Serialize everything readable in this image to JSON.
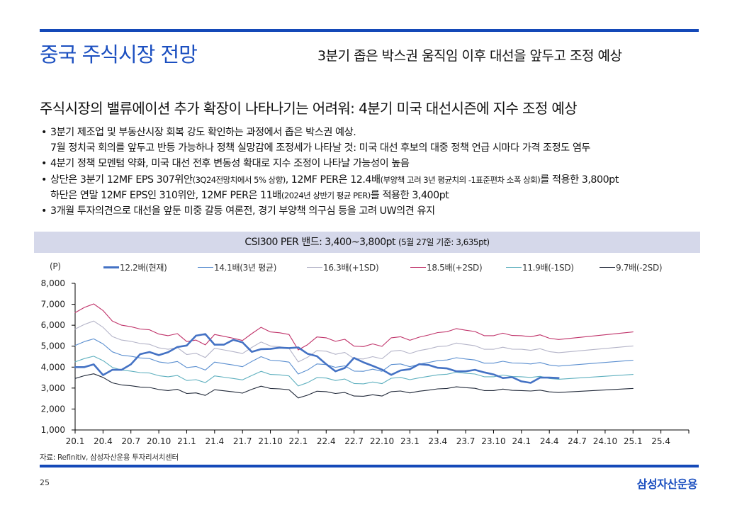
{
  "header": {
    "title": "중국 주식시장 전망",
    "subtitle": "3분기 좁은 박스권 움직임 이후 대선을 앞두고 조정 예상"
  },
  "headline": "주식시장의 밸류에이션 추가 확장이 나타나기는 어려워: 4분기 미국 대선시즌에 지수 조정 예상",
  "bullets": [
    {
      "marker": "•",
      "line1": "3분기 제조업 및 부동산시장 회복 강도 확인하는 과정에서 좁은 박스권 예상.",
      "line2": "7월 정치국 회의를 앞두고 반등 가능하나 정책 실망감에 조정세가 나타날 것: 미국 대선 후보의 대중 정책 언급 시마다 가격 조정도 염두"
    },
    {
      "marker": "•",
      "line1": "4분기 정책 모멘텀 약화, 미국 대선 전후 변동성 확대로 지수 조정이 나타날 가능성이 높음"
    },
    {
      "marker": "•",
      "line1_a": "상단은 3분기 12MF EPS 307위안",
      "line1_b": "(3Q24전망치에서 5% 상향)",
      "line1_c": ", 12MF PER은 12.4배",
      "line1_d": "(부양책 고려 3년 평균치의 -1표준편차 소폭 상회)",
      "line1_e": "를 적용한 3,800pt",
      "line2_a": "하단은 연말 12MF EPS인 310위안, 12MF PER은 11배",
      "line2_b": "(2024년 상반기 평균 PER)",
      "line2_c": "를 적용한 3,400pt"
    },
    {
      "marker": "•",
      "line1": "3개월 투자의견으로 대선을 앞둔 미중 갈등 여론전, 경기 부양책 의구심 등을 고려 UW의견 유지"
    }
  ],
  "band_bar": {
    "main": "CSI300 PER 밴드: 3,400~3,800pt",
    "note": "(5월 27일 기준: 3,635pt)"
  },
  "source": "자료: Refinitiv, 삼성자산운용 투자리서치센터",
  "page_number": "25",
  "brand": "삼성자산운용",
  "chart_data": {
    "type": "line",
    "title": "CSI300 PER 밴드",
    "ylabel": "(P)",
    "xlabel": "",
    "ylim": [
      1000,
      8000
    ],
    "yticks": [
      1000,
      2000,
      3000,
      4000,
      5000,
      6000,
      7000,
      8000
    ],
    "ytick_labels": [
      "1,000",
      "2,000",
      "3,000",
      "4,000",
      "5,000",
      "6,000",
      "7,000",
      "8,000"
    ],
    "x_start": "20.1",
    "x_unit": "month",
    "xlim_months": [
      0,
      66
    ],
    "xticks": [
      "20.1",
      "20.4",
      "20.7",
      "20.10",
      "21.1",
      "21.4",
      "21.7",
      "21.10",
      "22.1",
      "22.4",
      "22.7",
      "22.10",
      "23.1",
      "23.4",
      "23.7",
      "23.10",
      "24.1",
      "24.4",
      "24.7",
      "24.10",
      "25.1",
      "25.4"
    ],
    "grid": false,
    "legend_position": "top",
    "series": [
      {
        "name": "12.2배(현재)",
        "color": "#4472c4",
        "thick": true,
        "months": [
          0,
          1,
          2,
          3,
          4,
          5,
          6,
          7,
          8,
          9,
          10,
          11,
          12,
          13,
          14,
          15,
          16,
          17,
          18,
          19,
          20,
          21,
          22,
          23,
          24,
          25,
          26,
          27,
          28,
          29,
          30,
          31,
          32,
          33,
          34,
          35,
          36,
          37,
          38,
          39,
          40,
          41,
          42,
          43,
          44,
          45,
          46,
          47,
          48,
          49,
          50,
          51,
          52
        ],
        "values": [
          4000,
          4000,
          4130,
          3620,
          3870,
          3870,
          4130,
          4620,
          4720,
          4570,
          4710,
          4960,
          5030,
          5500,
          5580,
          5070,
          5070,
          5300,
          5180,
          4730,
          4860,
          4870,
          4930,
          4910,
          4940,
          4640,
          4520,
          4140,
          3800,
          3960,
          4440,
          4230,
          4060,
          3880,
          3630,
          3840,
          3900,
          4140,
          4100,
          3970,
          3940,
          3800,
          3800,
          3870,
          3750,
          3650,
          3480,
          3520,
          3320,
          3250,
          3500,
          3500,
          3480
        ]
      },
      {
        "name": "14.1배(3년 평균)",
        "color": "#5b8fd0",
        "months": [
          0,
          1,
          2,
          3,
          4,
          5,
          6,
          7,
          8,
          9,
          10,
          11,
          12,
          13,
          14,
          15,
          16,
          17,
          18,
          19,
          20,
          21,
          22,
          23,
          24,
          25,
          26,
          27,
          28,
          29,
          30,
          31,
          32,
          33,
          34,
          35,
          36,
          37,
          38,
          39,
          40,
          41,
          42,
          43,
          44,
          45,
          46,
          47,
          48,
          49,
          50,
          51,
          52,
          60
        ],
        "values": [
          5030,
          5220,
          5350,
          5110,
          4730,
          4570,
          4520,
          4440,
          4410,
          4250,
          4190,
          4270,
          3980,
          4030,
          3860,
          4240,
          4170,
          4100,
          4020,
          4270,
          4500,
          4330,
          4300,
          4240,
          3670,
          3860,
          4150,
          4120,
          3990,
          4060,
          3810,
          3800,
          3900,
          3800,
          4120,
          4150,
          4020,
          4140,
          4220,
          4310,
          4340,
          4450,
          4390,
          4340,
          4190,
          4190,
          4280,
          4200,
          4190,
          4150,
          4220,
          4100,
          4050,
          4330
        ]
      },
      {
        "name": "16.3배(+1SD)",
        "color": "#b4b4c8",
        "months": [
          0,
          1,
          2,
          3,
          4,
          5,
          6,
          7,
          8,
          9,
          10,
          11,
          12,
          13,
          14,
          15,
          16,
          17,
          18,
          19,
          20,
          21,
          22,
          23,
          24,
          25,
          26,
          27,
          28,
          29,
          30,
          31,
          32,
          33,
          34,
          35,
          36,
          37,
          38,
          39,
          40,
          41,
          42,
          43,
          44,
          45,
          46,
          47,
          48,
          49,
          50,
          51,
          52,
          60
        ],
        "values": [
          5820,
          6040,
          6200,
          5900,
          5460,
          5290,
          5230,
          5130,
          5090,
          4920,
          4850,
          4930,
          4600,
          4660,
          4460,
          4900,
          4820,
          4740,
          4650,
          4940,
          5200,
          5010,
          4970,
          4900,
          4250,
          4470,
          4790,
          4760,
          4610,
          4700,
          4410,
          4390,
          4500,
          4400,
          4760,
          4800,
          4650,
          4790,
          4870,
          4980,
          5010,
          5150,
          5080,
          5020,
          4850,
          4850,
          4950,
          4860,
          4850,
          4800,
          4880,
          4740,
          4690,
          5010
        ]
      },
      {
        "name": "18.5배(+2SD)",
        "color": "#c0336a",
        "months": [
          0,
          1,
          2,
          3,
          4,
          5,
          6,
          7,
          8,
          9,
          10,
          11,
          12,
          13,
          14,
          15,
          16,
          17,
          18,
          19,
          20,
          21,
          22,
          23,
          24,
          25,
          26,
          27,
          28,
          29,
          30,
          31,
          32,
          33,
          34,
          35,
          36,
          37,
          38,
          39,
          40,
          41,
          42,
          43,
          44,
          45,
          46,
          47,
          48,
          49,
          50,
          51,
          52,
          60
        ],
        "values": [
          6600,
          6850,
          7020,
          6700,
          6200,
          6000,
          5930,
          5820,
          5780,
          5580,
          5500,
          5600,
          5220,
          5290,
          5060,
          5560,
          5470,
          5380,
          5270,
          5600,
          5900,
          5680,
          5640,
          5560,
          4820,
          5070,
          5440,
          5400,
          5230,
          5330,
          5000,
          4980,
          5110,
          4990,
          5400,
          5450,
          5280,
          5430,
          5530,
          5650,
          5690,
          5840,
          5760,
          5700,
          5500,
          5500,
          5620,
          5510,
          5500,
          5450,
          5540,
          5380,
          5320,
          5680
        ]
      },
      {
        "name": "11.9배(-1SD)",
        "color": "#5fb0bf",
        "months": [
          0,
          1,
          2,
          3,
          4,
          5,
          6,
          7,
          8,
          9,
          10,
          11,
          12,
          13,
          14,
          15,
          16,
          17,
          18,
          19,
          20,
          21,
          22,
          23,
          24,
          25,
          26,
          27,
          28,
          29,
          30,
          31,
          32,
          33,
          34,
          35,
          36,
          37,
          38,
          39,
          40,
          41,
          42,
          43,
          44,
          45,
          46,
          47,
          48,
          49,
          50,
          51,
          52,
          60
        ],
        "values": [
          4250,
          4410,
          4520,
          4310,
          3990,
          3860,
          3810,
          3740,
          3720,
          3590,
          3540,
          3600,
          3360,
          3400,
          3260,
          3580,
          3520,
          3460,
          3390,
          3600,
          3800,
          3650,
          3630,
          3580,
          3100,
          3260,
          3500,
          3480,
          3360,
          3430,
          3220,
          3200,
          3290,
          3210,
          3470,
          3510,
          3400,
          3490,
          3560,
          3630,
          3660,
          3760,
          3710,
          3670,
          3540,
          3540,
          3620,
          3550,
          3540,
          3510,
          3560,
          3460,
          3420,
          3650
        ]
      },
      {
        "name": "9.7배(-2SD)",
        "color": "#222a3a",
        "months": [
          0,
          1,
          2,
          3,
          4,
          5,
          6,
          7,
          8,
          9,
          10,
          11,
          12,
          13,
          14,
          15,
          16,
          17,
          18,
          19,
          20,
          21,
          22,
          23,
          24,
          25,
          26,
          27,
          28,
          29,
          30,
          31,
          32,
          33,
          34,
          35,
          36,
          37,
          38,
          39,
          40,
          41,
          42,
          43,
          44,
          45,
          46,
          47,
          48,
          49,
          50,
          51,
          52,
          60
        ],
        "values": [
          3460,
          3590,
          3680,
          3510,
          3250,
          3150,
          3110,
          3050,
          3030,
          2930,
          2880,
          2940,
          2740,
          2770,
          2650,
          2920,
          2870,
          2820,
          2760,
          2940,
          3090,
          2980,
          2960,
          2920,
          2530,
          2660,
          2850,
          2830,
          2740,
          2790,
          2620,
          2610,
          2680,
          2620,
          2830,
          2860,
          2770,
          2850,
          2900,
          2960,
          2980,
          3060,
          3020,
          2990,
          2880,
          2880,
          2950,
          2890,
          2880,
          2860,
          2900,
          2820,
          2790,
          2980
        ]
      }
    ]
  }
}
